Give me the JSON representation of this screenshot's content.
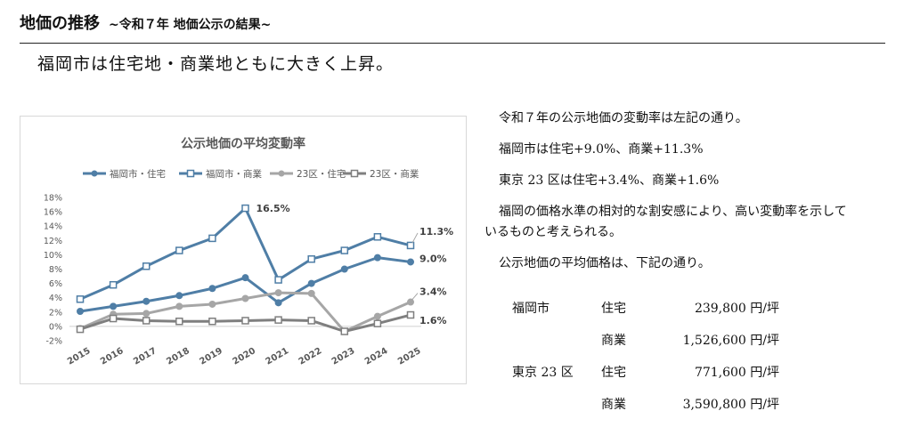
{
  "header": {
    "title": "地価の推移",
    "subtitle_small": "~令和７年 地価公示の結果~"
  },
  "lead": "福岡市は住宅地・商業地ともに大きく上昇。",
  "chart_data": {
    "type": "line",
    "title": "公示地価の平均変動率",
    "categories": [
      "2015",
      "2016",
      "2017",
      "2018",
      "2019",
      "2020",
      "2021",
      "2022",
      "2023",
      "2024",
      "2025"
    ],
    "yticks": [
      "18%",
      "16%",
      "14%",
      "12%",
      "10%",
      "8%",
      "6%",
      "4%",
      "2%",
      "0%",
      "-2%"
    ],
    "ylim": [
      -2,
      18
    ],
    "series": [
      {
        "name": "福岡市・住宅",
        "color": "#4f7ea6",
        "marker": "filled",
        "values": [
          2.1,
          2.8,
          3.5,
          4.3,
          5.3,
          6.8,
          3.3,
          6.0,
          8.0,
          9.6,
          9.0
        ]
      },
      {
        "name": "福岡市・商業",
        "color": "#4f7ea6",
        "marker": "hollow",
        "values": [
          3.8,
          5.8,
          8.4,
          10.6,
          12.3,
          16.5,
          6.5,
          9.4,
          10.6,
          12.5,
          11.3
        ]
      },
      {
        "name": "23区・住宅",
        "color": "#a6a6a6",
        "marker": "filled",
        "values": [
          -0.3,
          1.7,
          1.8,
          2.8,
          3.1,
          3.9,
          4.7,
          4.6,
          -0.7,
          1.4,
          3.4
        ]
      },
      {
        "name": "23区・商業",
        "color": "#7f7f7f",
        "marker": "hollow",
        "values": [
          -0.4,
          1.1,
          0.8,
          0.7,
          0.7,
          0.8,
          0.9,
          0.8,
          -0.7,
          0.4,
          1.6
        ]
      }
    ],
    "annotations": [
      {
        "label": "16.5%",
        "series": 1,
        "index": 5
      },
      {
        "label": "11.3%",
        "series": 1,
        "index": 10
      },
      {
        "label": "9.0%",
        "series": 0,
        "index": 10
      },
      {
        "label": "3.4%",
        "series": 2,
        "index": 10
      },
      {
        "label": "1.6%",
        "series": 3,
        "index": 10
      }
    ],
    "grid": false,
    "legend_position": "top"
  },
  "text": {
    "p1": "令和７年の公示地価の変動率は左記の通り。",
    "p2": "福岡市は住宅+9.0%、商業+11.3%",
    "p3": "東京 23 区は住宅+3.4%、商業+1.6%",
    "p4a": "福岡の価格水準の相対的な割安感により、高い変動率を示して",
    "p4b": "いるものと考えられる。",
    "p5": "公示地価の平均価格は、下記の通り。"
  },
  "prices": [
    {
      "area": "福岡市",
      "type": "住宅",
      "price": "239,800 円/坪"
    },
    {
      "area": "",
      "type": "商業",
      "price": "1,526,600 円/坪"
    },
    {
      "area": "東京 23 区",
      "type": "住宅",
      "price": "771,600 円/坪"
    },
    {
      "area": "",
      "type": "商業",
      "price": "3,590,800 円/坪"
    }
  ]
}
